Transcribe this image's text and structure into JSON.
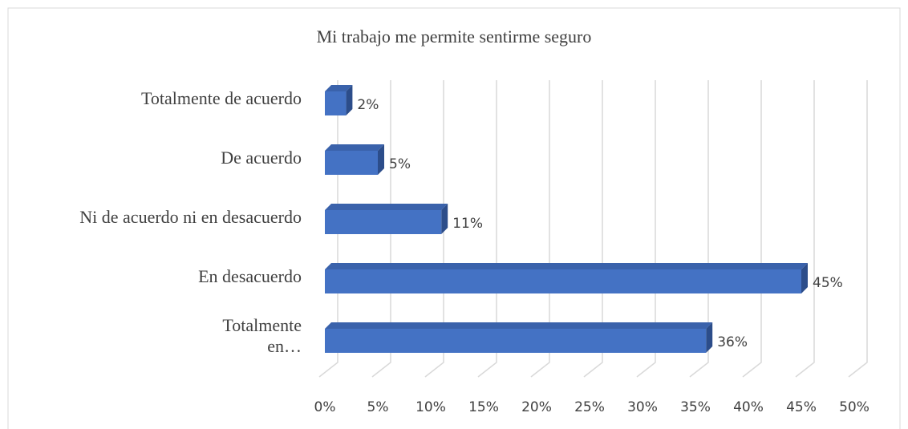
{
  "chart_data": {
    "type": "bar3d_horizontal",
    "title": "Mi trabajo me permite sentirme seguro",
    "categories": [
      "Totalmente de acuerdo",
      "De acuerdo",
      "Ni de acuerdo ni en desacuerdo",
      "En desacuerdo",
      "Totalmente en…"
    ],
    "values": [
      2,
      5,
      11,
      45,
      36
    ],
    "value_labels": [
      "2%",
      "5%",
      "11%",
      "45%",
      "36%"
    ],
    "color": "#4472c4",
    "xlim": [
      0,
      50
    ],
    "xticks": [
      {
        "value": 0,
        "label": "0%"
      },
      {
        "value": 5,
        "label": "5%"
      },
      {
        "value": 10,
        "label": "10%"
      },
      {
        "value": 15,
        "label": "15%"
      },
      {
        "value": 20,
        "label": "20%"
      },
      {
        "value": 25,
        "label": "25%"
      },
      {
        "value": 30,
        "label": "30%"
      },
      {
        "value": 35,
        "label": "35%"
      },
      {
        "value": 40,
        "label": "40%"
      },
      {
        "value": 45,
        "label": "45%"
      },
      {
        "value": 50,
        "label": "50%"
      }
    ],
    "grid": true
  }
}
